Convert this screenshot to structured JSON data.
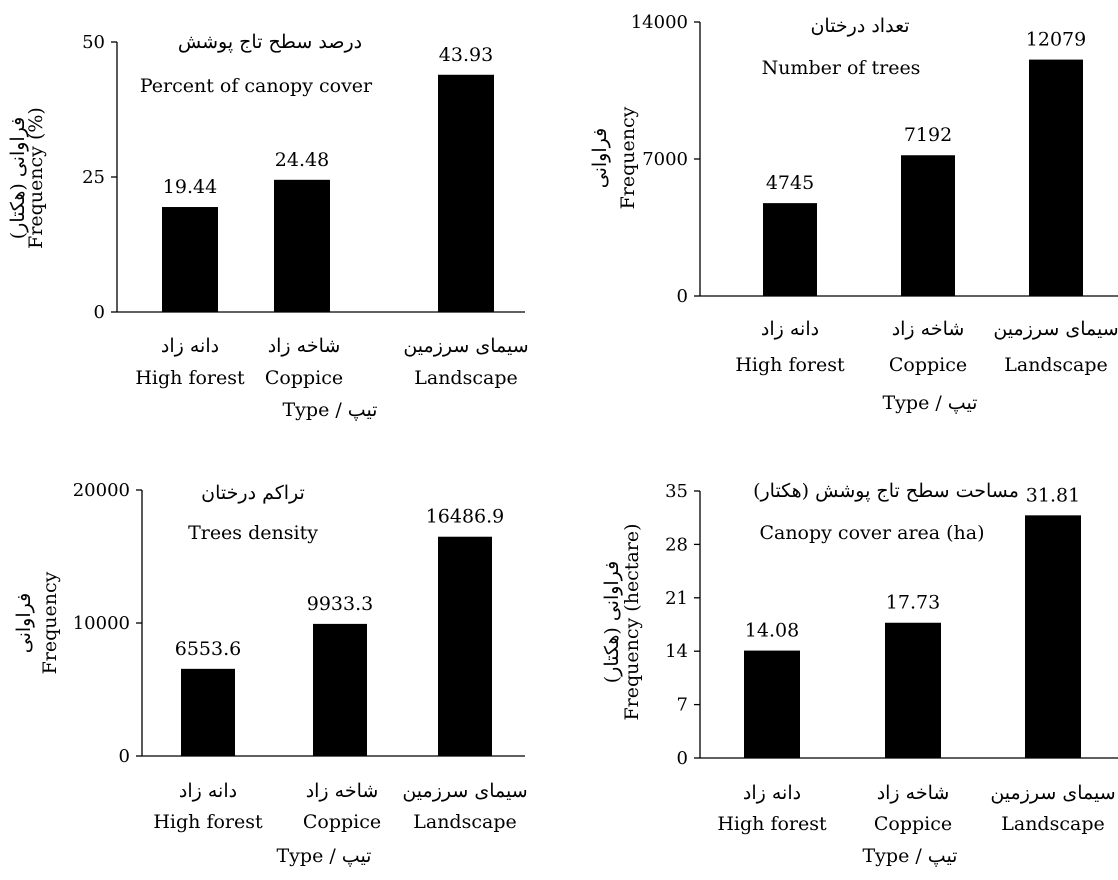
{
  "chart_data": [
    {
      "type": "bar",
      "title_fa": "درصد سطح تاج پوشش",
      "title": "Percent of canopy cover",
      "ylabel_fa": "فراوانی (هکتار)",
      "ylabel": "Frequency (%)",
      "xlabel": "Type / تیپ",
      "categories_fa": [
        "دانه زاد",
        "شاخه زاد",
        "سیمای سرزمین"
      ],
      "categories": [
        "High forest",
        "Coppice",
        "Landscape"
      ],
      "values": [
        19.44,
        24.48,
        43.93
      ],
      "value_labels": [
        "19.44",
        "24.48",
        "43.93"
      ],
      "ylim": [
        0,
        50
      ],
      "yticks": [
        0,
        25,
        50
      ],
      "ytick_labels": [
        "0",
        "25",
        "50"
      ]
    },
    {
      "type": "bar",
      "title_fa": "تعداد درختان",
      "title": "Number of trees",
      "ylabel_fa": "فراوانی",
      "ylabel": "Frequency",
      "xlabel": "Type / تیپ",
      "categories_fa": [
        "دانه زاد",
        "شاخه زاد",
        "سیمای سرزمین"
      ],
      "categories": [
        "High forest",
        "Coppice",
        "Landscape"
      ],
      "values": [
        4745,
        7192,
        12079
      ],
      "value_labels": [
        "4745",
        "7192",
        "12079"
      ],
      "ylim": [
        0,
        14000
      ],
      "yticks": [
        0,
        7000,
        14000
      ],
      "ytick_labels": [
        "0",
        "7000",
        "14000"
      ]
    },
    {
      "type": "bar",
      "title_fa": "تراکم درختان",
      "title": "Trees density",
      "ylabel_fa": "فراوانی",
      "ylabel": "Frequency",
      "xlabel": "Type / تیپ",
      "categories_fa": [
        "دانه زاد",
        "شاخه زاد",
        "سیمای سرزمین"
      ],
      "categories": [
        "High forest",
        "Coppice",
        "Landscape"
      ],
      "values": [
        6553.6,
        9933.3,
        16486.9
      ],
      "value_labels": [
        "6553.6",
        "9933.3",
        "16486.9"
      ],
      "ylim": [
        0,
        20000
      ],
      "yticks": [
        0,
        10000,
        20000
      ],
      "ytick_labels": [
        "0",
        "10000",
        "20000"
      ]
    },
    {
      "type": "bar",
      "title_fa": "مساحت سطح تاج پوشش (هکتار)",
      "title": "Canopy cover area (ha)",
      "ylabel_fa": "فراوانی (هکتار)",
      "ylabel": "Frequency (hectare)",
      "xlabel": "Type / تیپ",
      "categories_fa": [
        "دانه زاد",
        "شاخه زاد",
        "سیمای سرزمین"
      ],
      "categories": [
        "High forest",
        "Coppice",
        "Landscape"
      ],
      "values": [
        14.08,
        17.73,
        31.81
      ],
      "value_labels": [
        "14.08",
        "17.73",
        "31.81"
      ],
      "ylim": [
        0,
        35
      ],
      "yticks": [
        0,
        7,
        14,
        21,
        28,
        35
      ],
      "ytick_labels": [
        "0",
        "7",
        "14",
        "21",
        "28",
        "35"
      ]
    }
  ]
}
